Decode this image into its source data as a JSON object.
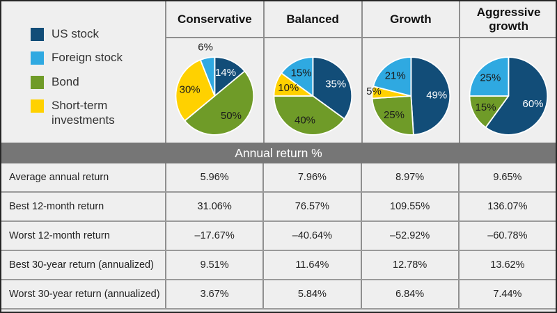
{
  "banner": {
    "title": "Annual return %"
  },
  "legend": {
    "items": [
      {
        "label": "US stock",
        "color": "#124d78"
      },
      {
        "label": "Foreign stock",
        "color": "#2fa9e1"
      },
      {
        "label": "Bond",
        "color": "#6f9b28"
      },
      {
        "label": "Short-term investments",
        "color": "#ffd100"
      }
    ]
  },
  "columns": [
    "Conservative",
    "Balanced",
    "Growth",
    "Aggressive growth"
  ],
  "colors": {
    "us_stock": "#124d78",
    "foreign_stock": "#2fa9e1",
    "bond": "#6f9b28",
    "short_term": "#ffd100",
    "banner_gray": "#767676",
    "background": "#efefef",
    "grid_line": "#8f8f8f"
  },
  "chart_data": [
    {
      "type": "pie",
      "title": "Conservative",
      "legend_position": "left",
      "slices": [
        {
          "label": "US stock",
          "value": 14,
          "color": "#124d78"
        },
        {
          "label": "Bond",
          "value": 50,
          "color": "#6f9b28"
        },
        {
          "label": "Short-term investments",
          "value": 30,
          "color": "#ffd100"
        },
        {
          "label": "Foreign stock",
          "value": 6,
          "color": "#2fa9e1"
        }
      ]
    },
    {
      "type": "pie",
      "title": "Balanced",
      "legend_position": "left",
      "slices": [
        {
          "label": "US stock",
          "value": 35,
          "color": "#124d78"
        },
        {
          "label": "Bond",
          "value": 40,
          "color": "#6f9b28"
        },
        {
          "label": "Short-term investments",
          "value": 10,
          "color": "#ffd100"
        },
        {
          "label": "Foreign stock",
          "value": 15,
          "color": "#2fa9e1"
        }
      ]
    },
    {
      "type": "pie",
      "title": "Growth",
      "legend_position": "left",
      "slices": [
        {
          "label": "US stock",
          "value": 49,
          "color": "#124d78"
        },
        {
          "label": "Bond",
          "value": 25,
          "color": "#6f9b28"
        },
        {
          "label": "Short-term investments",
          "value": 5,
          "color": "#ffd100"
        },
        {
          "label": "Foreign stock",
          "value": 21,
          "color": "#2fa9e1"
        }
      ]
    },
    {
      "type": "pie",
      "title": "Aggressive growth",
      "legend_position": "left",
      "slices": [
        {
          "label": "US stock",
          "value": 60,
          "color": "#124d78"
        },
        {
          "label": "Bond",
          "value": 15,
          "color": "#6f9b28"
        },
        {
          "label": "Foreign stock",
          "value": 25,
          "color": "#2fa9e1"
        }
      ]
    },
    {
      "type": "table",
      "title": "Annual return %",
      "columns": [
        "Conservative",
        "Balanced",
        "Growth",
        "Aggressive growth"
      ],
      "rows": [
        {
          "label": "Average annual return",
          "values": [
            "5.96%",
            "7.96%",
            "8.97%",
            "9.65%"
          ]
        },
        {
          "label": "Best 12-month return",
          "values": [
            "31.06%",
            "76.57%",
            "109.55%",
            "136.07%"
          ]
        },
        {
          "label": "Worst 12-month return",
          "values": [
            "–17.67%",
            "–40.64%",
            "–52.92%",
            "–60.78%"
          ]
        },
        {
          "label": "Best 30-year return (annualized)",
          "values": [
            "9.51%",
            "11.64%",
            "12.78%",
            "13.62%"
          ]
        },
        {
          "label": "Worst 30-year return (annualized)",
          "values": [
            "3.67%",
            "5.84%",
            "6.84%",
            "7.44%"
          ]
        }
      ]
    }
  ]
}
